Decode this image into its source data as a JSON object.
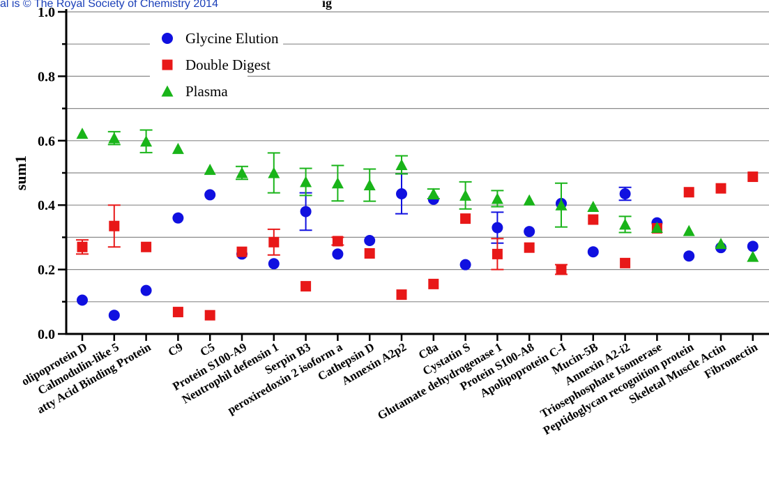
{
  "copyright": "al is © The Royal Society of Chemistry 2014",
  "partial_title": "ig",
  "chart_data": {
    "type": "scatter",
    "title": "",
    "xlabel": "",
    "ylabel": "sum1",
    "ylim": [
      0,
      1.0
    ],
    "yticks": [
      "0.0",
      "0.2",
      "0.4",
      "0.6",
      "0.8",
      "1.0"
    ],
    "grid": true,
    "legend_position": "top-left",
    "categories": [
      "Apolipoprotein D",
      "Calmodulin-like 5",
      "Fatty Acid Binding Protein",
      "C9",
      "C5",
      "Protein S100-A9",
      "Neutrophil defensin 1",
      "Serpin B3",
      "peroxiredoxin 2 isoform a",
      "Cathepsin D",
      "Annexin A2p2",
      "C8a",
      "Cystatin S",
      "Glutamate dehydrogenase 1",
      "Protein S100-A8",
      "Apolipoprotein C-I",
      "Mucin-5B",
      "Annexin A2-i2",
      "Triosephosphate Isomerase",
      "Peptidoglycan recognition protein",
      "Skeletal Muscle Actin",
      "Fibronectin"
    ],
    "category_labels_shown": [
      "olipoprotein D",
      "Calmodulin-like 5",
      "atty Acid Binding Protein",
      "C9",
      "C5",
      "Protein S100-A9",
      "Neutrophil defensin 1",
      "Serpin B3",
      "peroxiredoxin 2 isoform a",
      "Cathepsin D",
      "Annexin A2p2",
      "C8a",
      "Cystatin S",
      "Glutamate dehydrogenase 1",
      "Protein S100-A8",
      "Apolipoprotein C-I",
      "Mucin-5B",
      "Annexin A2-i2",
      "Triosephosphate Isomerase",
      "Peptidoglycan recognition protein",
      "Skeletal Muscle Actin",
      "Fibronectin"
    ],
    "series": [
      {
        "name": "Glycine Elution",
        "marker": "circle",
        "color": "#1010e0",
        "values": [
          0.105,
          0.058,
          0.135,
          0.36,
          0.432,
          0.248,
          0.218,
          0.38,
          0.248,
          0.29,
          0.435,
          0.418,
          0.215,
          0.33,
          0.318,
          0.405,
          0.255,
          0.435,
          0.345,
          0.242,
          0.268,
          0.272
        ],
        "errors": [
          0,
          0,
          0,
          0,
          0,
          0,
          0,
          0.058,
          0,
          0,
          0.062,
          0,
          0,
          0.048,
          0,
          0,
          0,
          0.02,
          0,
          0,
          0,
          0
        ]
      },
      {
        "name": "Double Digest",
        "marker": "square",
        "color": "#e81818",
        "values": [
          0.27,
          0.335,
          0.27,
          0.068,
          0.058,
          0.255,
          0.285,
          0.148,
          0.288,
          0.25,
          0.122,
          0.155,
          0.358,
          0.248,
          0.268,
          0.2,
          0.355,
          0.22,
          0.328,
          0.44,
          0.452,
          0.488
        ],
        "errors": [
          0.022,
          0.065,
          0,
          0,
          0,
          0,
          0.04,
          0,
          0.012,
          0,
          0,
          0,
          0,
          0.048,
          0,
          0.015,
          0,
          0,
          0,
          0,
          0,
          0
        ]
      },
      {
        "name": "Plasma",
        "marker": "triangle",
        "color": "#19b419",
        "values": [
          0.622,
          0.608,
          0.598,
          0.575,
          0.51,
          0.5,
          0.5,
          0.472,
          0.468,
          0.462,
          0.525,
          0.435,
          0.43,
          0.42,
          0.415,
          0.4,
          0.395,
          0.34,
          0.33,
          0.32,
          0.28,
          0.24
        ],
        "errors": [
          0,
          0.02,
          0.035,
          0,
          0,
          0.02,
          0.062,
          0.042,
          0.055,
          0.05,
          0.028,
          0.015,
          0.042,
          0.025,
          0,
          0.068,
          0,
          0.025,
          0,
          0,
          0,
          0
        ]
      }
    ]
  }
}
